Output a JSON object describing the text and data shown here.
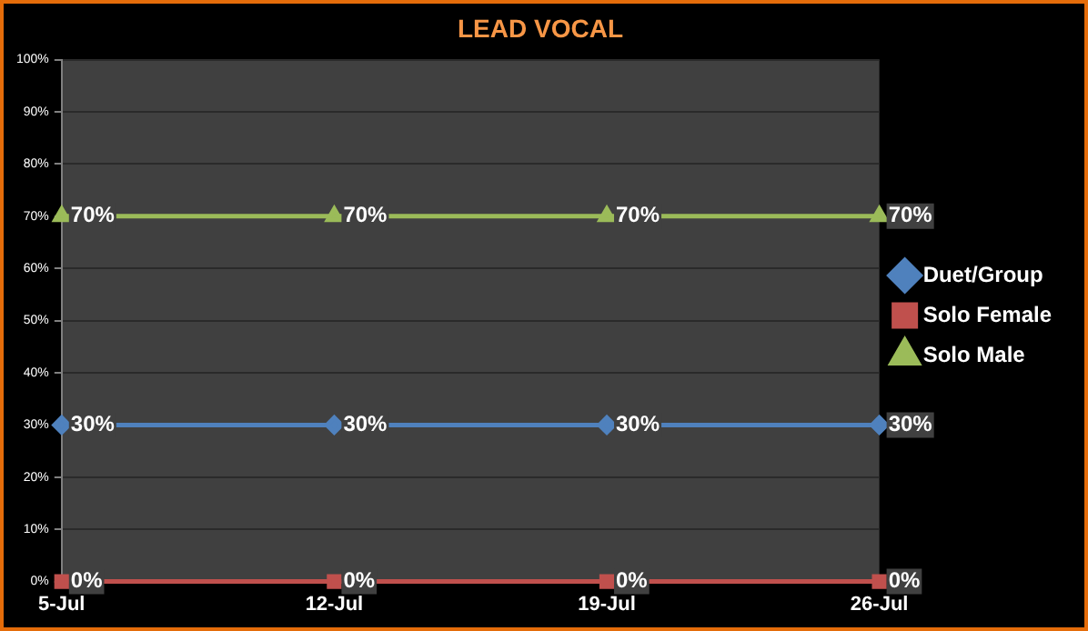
{
  "chart_data": {
    "type": "line",
    "title": "LEAD VOCAL",
    "categories": [
      "5-Jul",
      "12-Jul",
      "19-Jul",
      "26-Jul"
    ],
    "series": [
      {
        "name": "Duet/Group",
        "color": "#4f81bd",
        "marker": "diamond",
        "values": [
          30,
          30,
          30,
          30
        ],
        "value_labels": [
          "30%",
          "30%",
          "30%",
          "30%"
        ]
      },
      {
        "name": "Solo Female",
        "color": "#c0504d",
        "marker": "square",
        "values": [
          0,
          0,
          0,
          0
        ],
        "value_labels": [
          "0%",
          "0%",
          "0%",
          "0%"
        ]
      },
      {
        "name": "Solo Male",
        "color": "#9bbb59",
        "marker": "triangle",
        "values": [
          70,
          70,
          70,
          70
        ],
        "value_labels": [
          "70%",
          "70%",
          "70%",
          "70%"
        ]
      }
    ],
    "ylim": [
      0,
      100
    ],
    "yticks": [
      {
        "value": 0,
        "label": "0%"
      },
      {
        "value": 10,
        "label": "10%"
      },
      {
        "value": 20,
        "label": "20%"
      },
      {
        "value": 30,
        "label": "30%"
      },
      {
        "value": 40,
        "label": "40%"
      },
      {
        "value": 50,
        "label": "50%"
      },
      {
        "value": 60,
        "label": "60%"
      },
      {
        "value": 70,
        "label": "70%"
      },
      {
        "value": 80,
        "label": "80%"
      },
      {
        "value": 90,
        "label": "90%"
      },
      {
        "value": 100,
        "label": "100%"
      }
    ],
    "grid": "y",
    "legend": "right",
    "line_style": "solid"
  }
}
